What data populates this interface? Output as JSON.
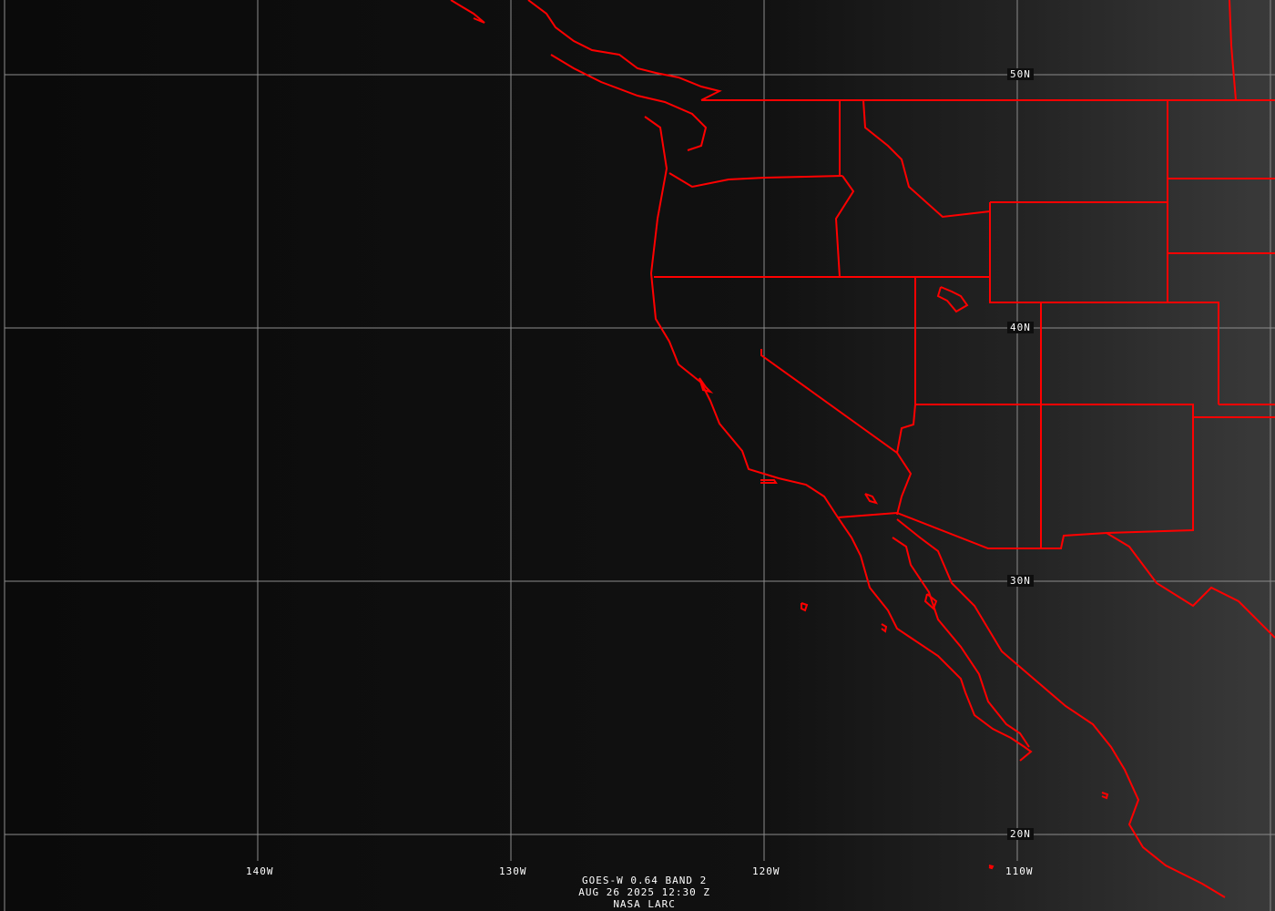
{
  "image": {
    "kind": "GOES-West visible satellite image",
    "colors": {
      "boundaries": "#ff0000",
      "grid": "#8c8c8c",
      "text": "#ffffff",
      "background": "#0a0a0a"
    }
  },
  "grid_labels": {
    "longitudes": [
      "140W",
      "130W",
      "120W",
      "110W"
    ],
    "latitudes": [
      "50N",
      "40N",
      "30N",
      "20N"
    ]
  },
  "caption": {
    "satellite": "GOES-W 0.64 BAND 2",
    "datetime": "AUG 26 2025 12:30 Z",
    "source": "NASA LARC"
  }
}
